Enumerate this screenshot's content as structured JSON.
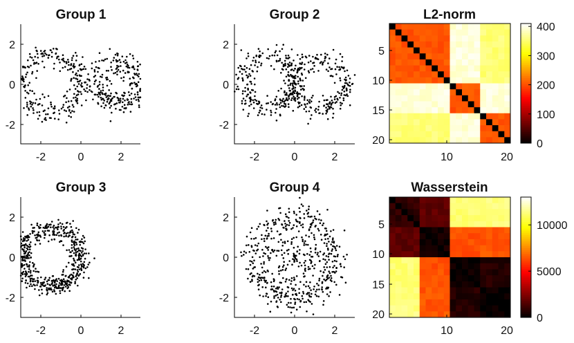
{
  "chart_data": [
    {
      "type": "scatter",
      "title": "Group 1",
      "description": "two noisy rings side by side",
      "xlim": [
        -3,
        3
      ],
      "ylim": [
        -3,
        3
      ],
      "xticks": [
        -2,
        0,
        2
      ],
      "yticks": [
        -2,
        0,
        2
      ],
      "xtick_labels": [],
      "ytick_labels": [
        "2",
        "0",
        "-2"
      ],
      "clusters": [
        {
          "cx": -1.4,
          "cy": 0.0,
          "r": 1.45,
          "noise": 0.28,
          "n": 260
        },
        {
          "cx": 1.85,
          "cy": 0.05,
          "r": 1.05,
          "noise": 0.32,
          "n": 260
        }
      ]
    },
    {
      "type": "scatter",
      "title": "Group 2",
      "description": "two noisy rings touching at x=0",
      "xlim": [
        -3,
        3
      ],
      "ylim": [
        -3,
        3
      ],
      "xticks": [
        -2,
        0,
        2
      ],
      "yticks": [
        -2,
        0,
        2
      ],
      "xtick_labels": [
        "-2",
        "0",
        "2"
      ],
      "ytick_labels": [
        "2",
        "0",
        "-2"
      ],
      "clusters": [
        {
          "cx": -1.25,
          "cy": 0.1,
          "r": 1.35,
          "noise": 0.28,
          "n": 260
        },
        {
          "cx": 1.25,
          "cy": 0.0,
          "r": 1.3,
          "noise": 0.28,
          "n": 260
        }
      ]
    },
    {
      "type": "scatter",
      "title": "Group 3",
      "description": "single noisy ring on the left",
      "xlim": [
        -3,
        3
      ],
      "ylim": [
        -3,
        3
      ],
      "xticks": [
        -2,
        0,
        2
      ],
      "yticks": [
        -2,
        0,
        2
      ],
      "xtick_labels": [
        "-2",
        "0",
        "2"
      ],
      "ytick_labels": [
        "2",
        "0",
        "-2"
      ],
      "clusters": [
        {
          "cx": -1.45,
          "cy": 0.0,
          "r": 1.45,
          "noise": 0.25,
          "n": 560
        }
      ]
    },
    {
      "type": "scatter",
      "title": "Group 4",
      "description": "single large noisy ring centered at origin",
      "xlim": [
        -3,
        3
      ],
      "ylim": [
        -3,
        3
      ],
      "xticks": [
        -2,
        0,
        2
      ],
      "yticks": [
        -2,
        0,
        2
      ],
      "xtick_labels": [
        "-2",
        "0",
        "2"
      ],
      "ytick_labels": [
        "2",
        "0",
        "-2"
      ],
      "clusters": [
        {
          "cx": 0.0,
          "cy": 0.0,
          "r": 2.05,
          "noise": 0.38,
          "n": 420
        },
        {
          "cx": 0.0,
          "cy": 0.0,
          "r": 1.0,
          "noise": 0.55,
          "n": 160
        }
      ]
    },
    {
      "type": "heatmap",
      "title": "L2-norm",
      "rows": 20,
      "cols": 20,
      "xticks": [
        10,
        20
      ],
      "xtick_labels": [
        "10",
        "20"
      ],
      "yticks": [
        5,
        10,
        15,
        20
      ],
      "ytick_labels": [
        "5",
        "10",
        "15",
        "20"
      ],
      "colormap": "hot",
      "clim": [
        0,
        410
      ],
      "colorbar_ticks": [
        0,
        100,
        200,
        300,
        400
      ],
      "colorbar_labels": [
        "0",
        "100",
        "200",
        "300",
        "400"
      ],
      "groups": [
        [
          1,
          5
        ],
        [
          6,
          10
        ],
        [
          11,
          15
        ],
        [
          16,
          20
        ]
      ],
      "block_values": [
        [
          205,
          205,
          395,
          355
        ],
        [
          205,
          205,
          395,
          355
        ],
        [
          395,
          395,
          205,
          395
        ],
        [
          355,
          355,
          395,
          205
        ]
      ],
      "diagonal_value": 0
    },
    {
      "type": "heatmap",
      "title": "Wasserstein",
      "rows": 20,
      "cols": 20,
      "xticks": [
        10,
        20
      ],
      "xtick_labels": [
        "10",
        "20"
      ],
      "yticks": [
        5,
        10,
        15,
        20
      ],
      "ytick_labels": [
        "5",
        "10",
        "15",
        "20"
      ],
      "colormap": "hot",
      "clim": [
        0,
        13000
      ],
      "colorbar_ticks": [
        0,
        5000,
        10000
      ],
      "colorbar_labels": [
        "0",
        "5000",
        "10000"
      ],
      "groups": [
        [
          1,
          5
        ],
        [
          6,
          10
        ],
        [
          11,
          15
        ],
        [
          16,
          20
        ]
      ],
      "block_values": [
        [
          900,
          1800,
          11200,
          11400
        ],
        [
          1800,
          400,
          6400,
          6500
        ],
        [
          11200,
          6400,
          200,
          700
        ],
        [
          11400,
          6500,
          700,
          200
        ]
      ],
      "diagonal_value": 0
    }
  ]
}
